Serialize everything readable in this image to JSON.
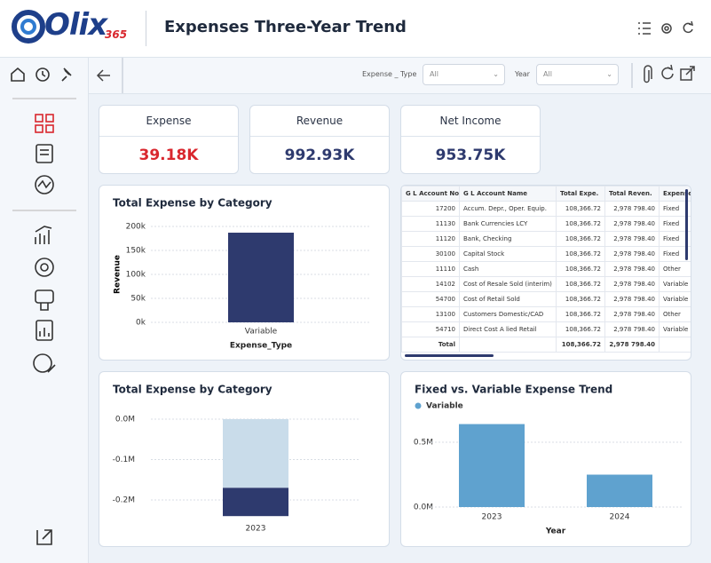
{
  "header": {
    "logo": "Olix",
    "logo_suffix": "365",
    "title": "Expenses Three-Year Trend"
  },
  "filters": [
    {
      "label": "Expense _ Type",
      "value": "All"
    },
    {
      "label": "Year",
      "value": "All"
    }
  ],
  "kpis": [
    {
      "label": "Expense",
      "value": "39.18K"
    },
    {
      "label": "Revenue",
      "value": "992.93K"
    },
    {
      "label": "Net Income",
      "value": "953.75K"
    }
  ],
  "table": {
    "columns": [
      "G L Account No",
      "G L Account Name",
      "Total Expe.",
      "Total Reven.",
      "Expense_Ty"
    ],
    "rows": [
      [
        "17200",
        "Accum. Depr., Oper. Equip.",
        "108,366.72",
        "2,978 798.40",
        "Fixed"
      ],
      [
        "11130",
        "Bank Currencies LCY",
        "108,366.72",
        "2,978 798.40",
        "Fixed"
      ],
      [
        "11120",
        "Bank, Checking",
        "108,366.72",
        "2,978 798.40",
        "Fixed"
      ],
      [
        "30100",
        "Capital Stock",
        "108,366.72",
        "2,978 798.40",
        "Fixed"
      ],
      [
        "11110",
        "Cash",
        "108,366.72",
        "2,978 798.40",
        "Other"
      ],
      [
        "14102",
        "Cost of Resale Sold (interim)",
        "108,366.72",
        "2,978 798.40",
        "Variable"
      ],
      [
        "54700",
        "Cost of Retail Sold",
        "108,366.72",
        "2,978 798.40",
        "Variable"
      ],
      [
        "13100",
        "Customers Domestic/CAD",
        "108,366.72",
        "2,978 798.40",
        "Other"
      ],
      [
        "54710",
        "Direct Cost A lied Retail",
        "108,366.72",
        "2,978 798.40",
        "Variable"
      ]
    ],
    "total": {
      "label": "Total",
      "values": [
        "108,366.72",
        "2,978 798.40"
      ]
    }
  },
  "chart_data": [
    {
      "type": "bar",
      "title": "Total Expense by Category",
      "x_label": "Expense_Type",
      "y_label": "Revenue",
      "categories": [
        "Variable"
      ],
      "values": [
        187000
      ],
      "color": "#2e3a6e",
      "ylim": [
        0,
        200000
      ],
      "yticks": [
        {
          "value": 0,
          "label": "0k"
        },
        {
          "value": 50000,
          "label": "50k"
        },
        {
          "value": 100000,
          "label": "100k"
        },
        {
          "value": 150000,
          "label": "150k"
        },
        {
          "value": 200000,
          "label": "200k"
        }
      ],
      "grid": true
    },
    {
      "type": "stacked_bar",
      "title": "Total Expense by Category",
      "categories": [
        "2023"
      ],
      "series": [
        {
          "color": "#c9dcea",
          "values": [
            -0.17
          ]
        },
        {
          "color": "#2e3a6e",
          "values": [
            -0.07
          ]
        }
      ],
      "ylim": [
        -0.25,
        0.02
      ],
      "yticks": [
        {
          "value": 0,
          "label": "0.0M"
        },
        {
          "value": -0.1,
          "label": "-0.1M"
        },
        {
          "value": -0.2,
          "label": "-0.2M"
        }
      ],
      "grid": true
    },
    {
      "type": "bar",
      "title": "Fixed vs. Variable Expense Trend",
      "x_label": "Year",
      "categories": [
        "2023",
        "2024"
      ],
      "series": [
        {
          "name": "Variable",
          "color": "#5fa2cf",
          "values": [
            0.64,
            0.25
          ]
        }
      ],
      "ylim": [
        0,
        0.7
      ],
      "yticks": [
        {
          "value": 0,
          "label": "0.0M"
        },
        {
          "value": 0.5,
          "label": "0.5M"
        }
      ],
      "grid": true,
      "legend": "top-left"
    }
  ]
}
